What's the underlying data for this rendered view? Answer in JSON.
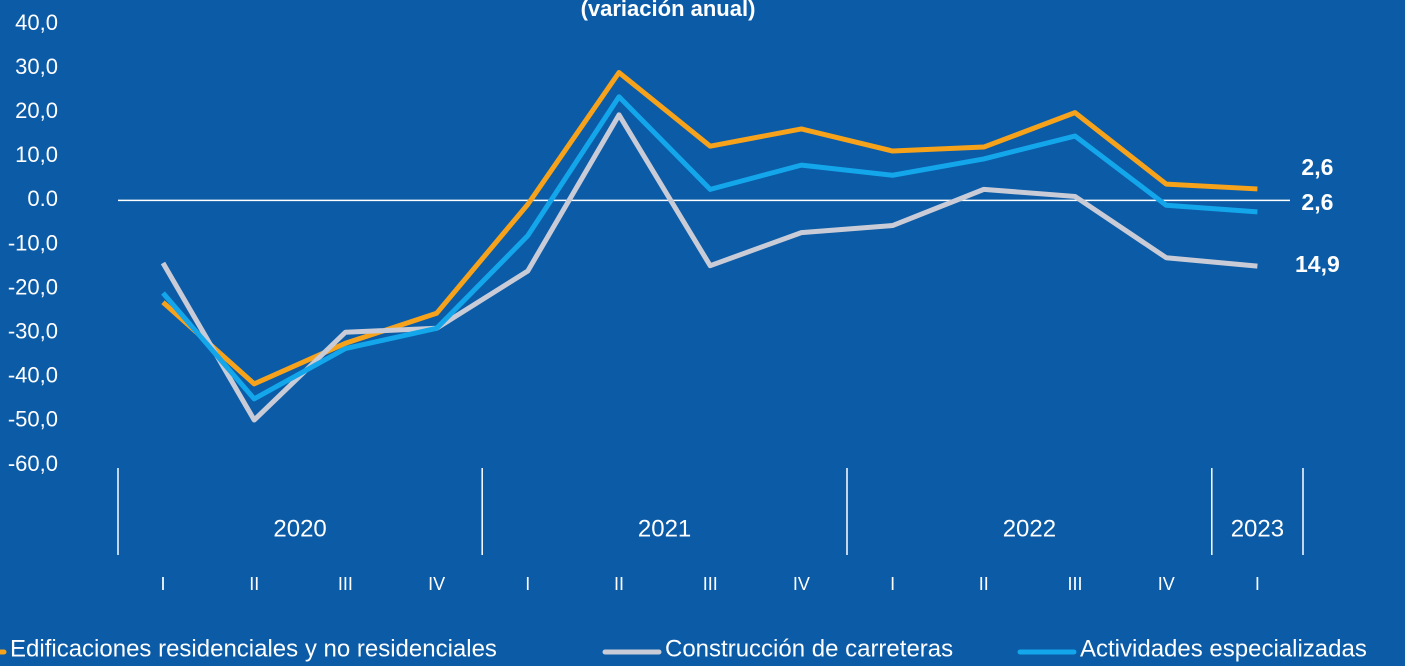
{
  "chart_data": {
    "type": "line",
    "title": "(variación anual)",
    "categories": [
      "I",
      "II",
      "III",
      "IV",
      "I",
      "II",
      "III",
      "IV",
      "I",
      "II",
      "III",
      "IV",
      "I"
    ],
    "years": [
      "2020",
      "2021",
      "2022",
      "2023"
    ],
    "series": [
      {
        "name": "Edificaciones residenciales y no residenciales",
        "color": "#f7a21b",
        "values": [
          -23.1,
          -41.6,
          -32.4,
          -25.6,
          -0.9,
          29.0,
          12.3,
          16.2,
          11.2,
          12.1,
          19.9,
          3.7,
          2.6
        ],
        "value_labels": [
          null,
          null,
          null,
          null,
          null,
          null,
          null,
          null,
          null,
          null,
          null,
          null,
          "2,6"
        ]
      },
      {
        "name": "Construcción de carreteras",
        "color": "#c9ccd6",
        "values": [
          -14.2,
          -49.8,
          -29.9,
          -29.0,
          -16.0,
          19.4,
          -14.8,
          -7.3,
          -5.7,
          2.5,
          0.9,
          -13.0,
          -14.9
        ],
        "value_labels": [
          null,
          null,
          null,
          null,
          null,
          null,
          null,
          null,
          null,
          null,
          null,
          null,
          "14,9"
        ]
      },
      {
        "name": "Actividades especializadas",
        "color": "#14a6ea",
        "values": [
          -21.0,
          -45.0,
          -33.6,
          -29.0,
          -8.0,
          23.5,
          2.5,
          8.0,
          5.7,
          9.4,
          14.6,
          -1.1,
          -2.6
        ],
        "value_labels": [
          null,
          null,
          null,
          null,
          null,
          null,
          null,
          null,
          null,
          null,
          null,
          null,
          "2,6"
        ]
      }
    ],
    "ylim": [
      -60,
      40
    ],
    "yticks": [
      {
        "value": -60,
        "label": "-60,0"
      },
      {
        "value": -50,
        "label": "-50,0"
      },
      {
        "value": -40,
        "label": "-40,0"
      },
      {
        "value": -30,
        "label": "-30,0"
      },
      {
        "value": -20,
        "label": "-20,0"
      },
      {
        "value": -10,
        "label": "-10,0"
      },
      {
        "value": 0,
        "label": "0.0"
      },
      {
        "value": 10,
        "label": "10,0"
      },
      {
        "value": 20,
        "label": "20,0"
      },
      {
        "value": 30,
        "label": "30,0"
      },
      {
        "value": 40,
        "label": "40,0"
      }
    ]
  }
}
